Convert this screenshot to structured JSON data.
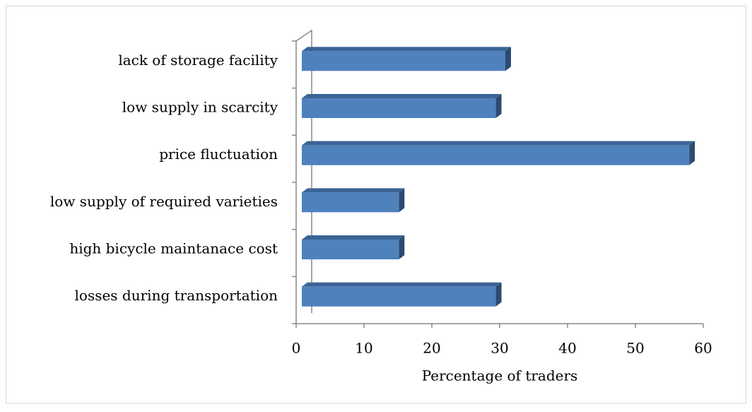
{
  "chart_data": {
    "type": "bar",
    "orientation": "horizontal",
    "x_axis_label": "Percentage of traders",
    "categories": [
      "losses during transportation",
      "high bicycle maintanace cost",
      "low supply of required varieties",
      "price fluctuation",
      "low supply in scarcity",
      "lack of storage facility"
    ],
    "values": [
      28.6,
      14.3,
      14.3,
      57.1,
      28.6,
      30
    ],
    "color": "#4f81bd",
    "xlim": [
      0,
      60
    ],
    "xticks": [
      0,
      10,
      20,
      30,
      40,
      50,
      60
    ],
    "grid": false
  }
}
